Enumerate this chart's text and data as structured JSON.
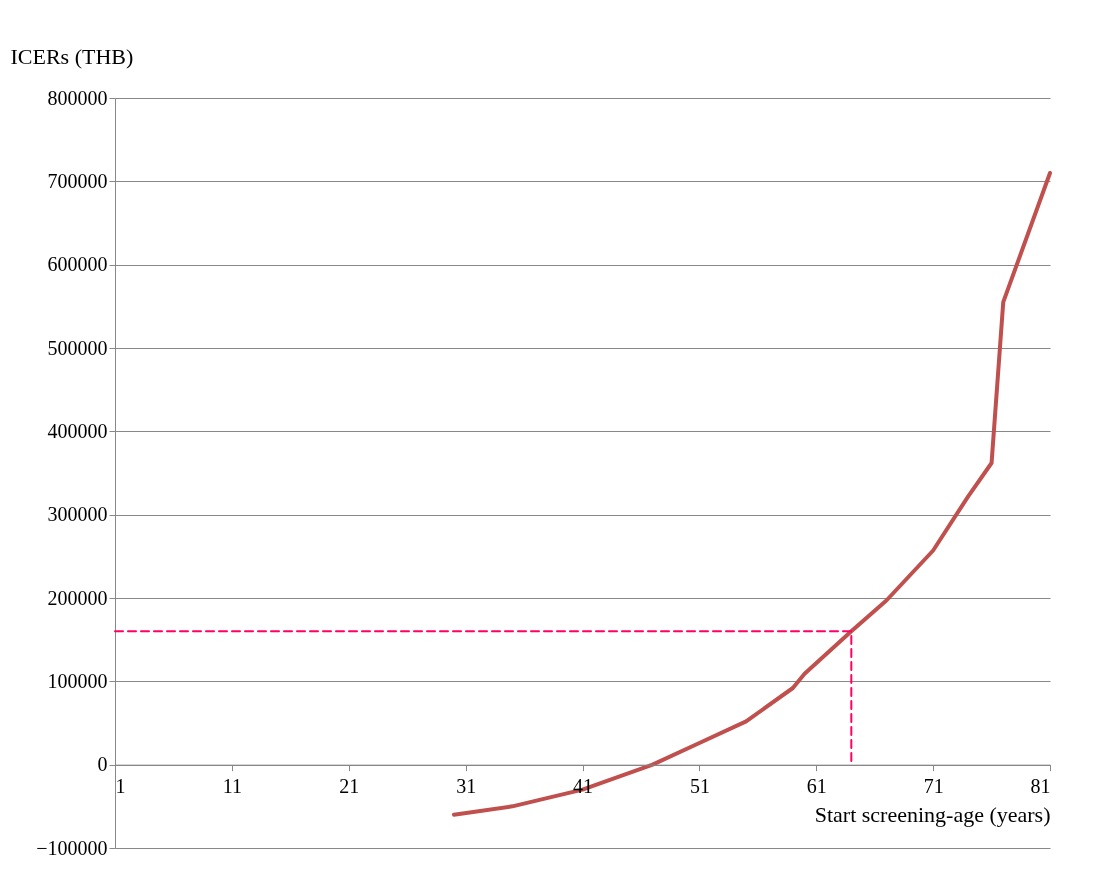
{
  "chart_data": {
    "type": "line",
    "ylabel": "ICERs (THB)",
    "xlabel": "Start screening-age (years)",
    "xlim": [
      1,
      81
    ],
    "xticks": [
      1,
      11,
      21,
      31,
      41,
      51,
      61,
      71,
      81
    ],
    "ylim": [
      -100000,
      800000
    ],
    "yticks": [
      -100000,
      0,
      100000,
      200000,
      300000,
      400000,
      500000,
      600000,
      700000,
      800000
    ],
    "grid": "y",
    "marker": "none",
    "series": [
      {
        "color": "#c0504d",
        "line_style": "solid",
        "x": [
          30,
          35,
          41,
          47,
          51,
          55,
          59,
          60,
          64,
          67,
          71,
          74,
          76,
          77,
          81
        ],
        "values": [
          -60000,
          -50000,
          -30000,
          0,
          26000,
          52000,
          92000,
          109000,
          160000,
          197000,
          257000,
          322000,
          362000,
          555000,
          710000
        ]
      },
      {
        "color": "#ff0066",
        "line_style": "dashed",
        "x": [
          1,
          64,
          64
        ],
        "values": [
          160000,
          160000,
          0
        ]
      }
    ]
  }
}
